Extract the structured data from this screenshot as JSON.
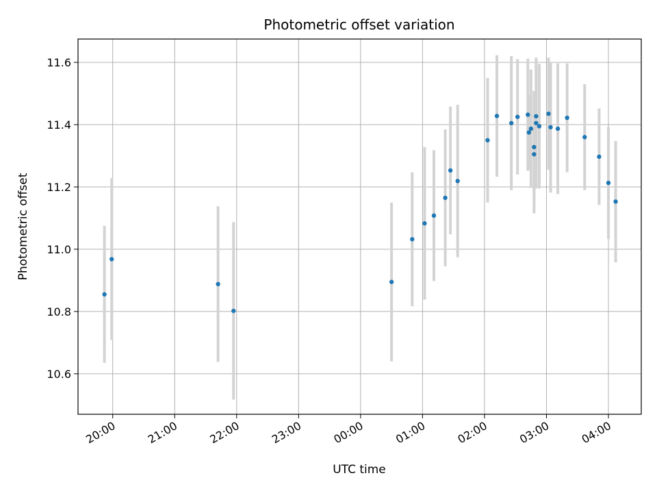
{
  "chart_data": {
    "type": "scatter",
    "title": "Photometric offset variation",
    "xlabel": "UTC time",
    "ylabel": "Photometric offset",
    "x_axis_kind": "time",
    "x_tick_labels": [
      "20:00",
      "21:00",
      "22:00",
      "23:00",
      "00:00",
      "01:00",
      "02:00",
      "03:00",
      "04:00"
    ],
    "x_tick_hours": [
      0,
      1,
      2,
      3,
      4,
      5,
      6,
      7,
      8
    ],
    "x_tick_note": "hours after 20:00 UTC",
    "xlim_hours": [
      -0.56,
      8.53
    ],
    "ylim": [
      10.47,
      11.675
    ],
    "y_ticks": [
      10.6,
      10.8,
      11.0,
      11.2,
      11.4,
      11.6
    ],
    "y_tick_labels": [
      "10.6",
      "10.8",
      "11.0",
      "11.2",
      "11.4",
      "11.6"
    ],
    "grid": true,
    "marker_color": "#1f77b4",
    "errorbar_color": "#d3d3d3",
    "points": [
      {
        "time": "19:52",
        "value": 10.855,
        "err": 0.22
      },
      {
        "time": "19:59",
        "value": 10.968,
        "err": 0.26
      },
      {
        "time": "21:42",
        "value": 10.888,
        "err": 0.25
      },
      {
        "time": "21:57",
        "value": 10.802,
        "err": 0.285
      },
      {
        "time": "00:30",
        "value": 10.895,
        "err": 0.255
      },
      {
        "time": "00:50",
        "value": 11.032,
        "err": 0.215
      },
      {
        "time": "01:02",
        "value": 11.083,
        "err": 0.245
      },
      {
        "time": "01:11",
        "value": 11.108,
        "err": 0.21
      },
      {
        "time": "01:22",
        "value": 11.165,
        "err": 0.22
      },
      {
        "time": "01:27",
        "value": 11.253,
        "err": 0.205
      },
      {
        "time": "01:34",
        "value": 11.219,
        "err": 0.245
      },
      {
        "time": "02:03",
        "value": 11.35,
        "err": 0.2
      },
      {
        "time": "02:12",
        "value": 11.428,
        "err": 0.195
      },
      {
        "time": "02:26",
        "value": 11.405,
        "err": 0.215
      },
      {
        "time": "02:32",
        "value": 11.425,
        "err": 0.185
      },
      {
        "time": "02:42",
        "value": 11.432,
        "err": 0.18
      },
      {
        "time": "02:43",
        "value": 11.375,
        "err": 0.12
      },
      {
        "time": "02:45",
        "value": 11.387,
        "err": 0.19
      },
      {
        "time": "02:48",
        "value": 11.328,
        "err": 0.18
      },
      {
        "time": "02:48",
        "value": 11.305,
        "err": 0.19
      },
      {
        "time": "02:50",
        "value": 11.405,
        "err": 0.21
      },
      {
        "time": "02:50",
        "value": 11.427,
        "err": 0.185
      },
      {
        "time": "02:53",
        "value": 11.395,
        "err": 0.2
      },
      {
        "time": "03:02",
        "value": 11.435,
        "err": 0.18
      },
      {
        "time": "03:04",
        "value": 11.392,
        "err": 0.21
      },
      {
        "time": "03:11",
        "value": 11.387,
        "err": 0.21
      },
      {
        "time": "03:20",
        "value": 11.422,
        "err": 0.175
      },
      {
        "time": "03:37",
        "value": 11.36,
        "err": 0.17
      },
      {
        "time": "03:51",
        "value": 11.297,
        "err": 0.155
      },
      {
        "time": "04:00",
        "value": 11.213,
        "err": 0.18
      },
      {
        "time": "04:07",
        "value": 11.153,
        "err": 0.195
      }
    ]
  }
}
